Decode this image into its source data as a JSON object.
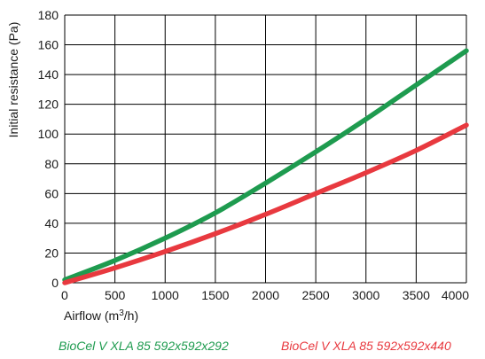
{
  "chart_data": {
    "type": "line",
    "xlabel": "Airflow (m3/h)",
    "xlabel_parts": {
      "base": "Airflow (m",
      "sup": "3",
      "tail": "/h)"
    },
    "ylabel": "Initial resistance (Pa)",
    "xlim": [
      0,
      4000
    ],
    "ylim": [
      0,
      180
    ],
    "x_ticks": [
      0,
      500,
      1000,
      1500,
      2000,
      2500,
      3000,
      3500,
      4000
    ],
    "y_ticks": [
      0,
      20,
      40,
      60,
      80,
      100,
      120,
      140,
      160,
      180
    ],
    "grid": {
      "vertical": true,
      "horizontal": true
    },
    "legend_placement": "bottom",
    "series": [
      {
        "name": "BioCel V XLA 85 592x592x292",
        "color": "#1e9b4f",
        "x": [
          0,
          500,
          1000,
          1500,
          2000,
          2500,
          3000,
          3500,
          4000
        ],
        "values": [
          2,
          15,
          30,
          47,
          67,
          88,
          110,
          133,
          156
        ]
      },
      {
        "name": "BioCel V XLA 85 592x592x440",
        "color": "#e8393f",
        "x": [
          0,
          500,
          1000,
          1500,
          2000,
          2500,
          3000,
          3500,
          4000
        ],
        "values": [
          0,
          10,
          21,
          33,
          46,
          60,
          74,
          89,
          106
        ]
      }
    ]
  }
}
